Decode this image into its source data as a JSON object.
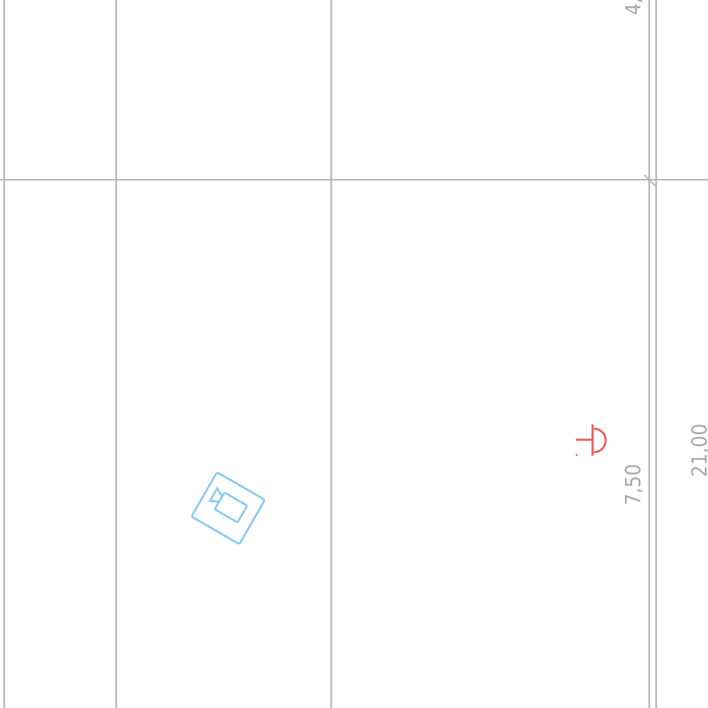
{
  "dimensions": {
    "top_right": "4,",
    "right_vertical": "21,00",
    "inner_vertical": "7,50"
  },
  "colors": {
    "grid": "#b4b4b4",
    "dimension_text": "#a8a8a8",
    "camera_symbol": "#8ccaf2",
    "socket_symbol": "#ee5a5a"
  },
  "icons": {
    "camera_symbol": "camera-icon",
    "socket_symbol": "socket-icon"
  }
}
